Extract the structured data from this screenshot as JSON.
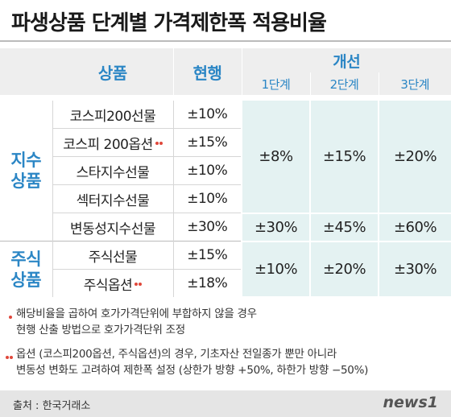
{
  "title": "파생상품 단계별 가격제한폭 적용비율",
  "table": {
    "header": {
      "product": "상품",
      "current": "현행",
      "improvement": "개선",
      "stages": [
        "1단계",
        "2단계",
        "3단계"
      ]
    },
    "groups": [
      {
        "name": "지수 상품",
        "rows": [
          {
            "product": "코스피200선물",
            "current": "±10%"
          },
          {
            "product": "코스피 200옵션",
            "current": "±15%"
          },
          {
            "product": "스타지수선물",
            "current": "±10%"
          },
          {
            "product": "섹터지수선물",
            "current": "±10%"
          },
          {
            "product": "변동성지수선물",
            "current": "±30%"
          }
        ]
      },
      {
        "name": "주식 상품",
        "rows": [
          {
            "product": "주식선물",
            "current": "±15%"
          },
          {
            "product": "주식옵션",
            "current": "±18%"
          }
        ]
      }
    ],
    "improvements": [
      [
        "±8%",
        "±15%",
        "±20%"
      ],
      [
        "±30%",
        "±45%",
        "±60%"
      ],
      [
        "±10%",
        "±20%",
        "±30%"
      ]
    ]
  },
  "notes": [
    [
      "해당비율을 곱하여 호가가격단위에 부합하지 않을 경우",
      "현행 산출 방법으로 호가가격단위 조정"
    ],
    [
      "옵션 (코스피200옵션, 주식옵션)의 경우, 기초자산 전일종가 뿐만 아니라",
      "변동성 변화도 고려하여 제한폭 설정 (상한가 방향 +50%, 하한가 방향 −50%)"
    ]
  ],
  "footer": {
    "source": "출처 : 한국거래소",
    "logo": "news1"
  }
}
